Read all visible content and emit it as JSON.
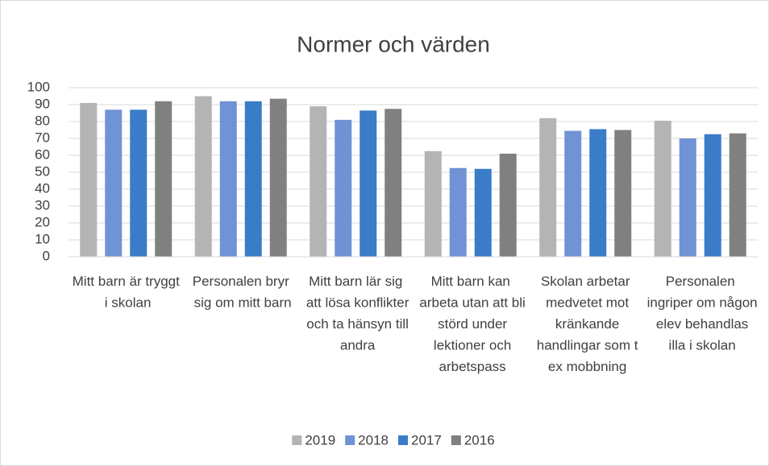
{
  "chart_data": {
    "type": "bar",
    "title": "Normer och värden",
    "categories": [
      "Mitt barn är tryggt i skolan",
      "Personalen bryr sig om mitt barn",
      "Mitt barn lär sig att lösa konflikter och ta hänsyn till andra",
      "Mitt barn kan arbeta utan att bli störd under lektioner och arbetspass",
      "Skolan arbetar medvetet mot kränkande handlingar som t ex mobbning",
      "Personalen ingriper om någon elev behandlas illa i skolan"
    ],
    "series": [
      {
        "name": "2019",
        "color": "#b4b4b4",
        "values": [
          91,
          95,
          89,
          62.5,
          82,
          80.5
        ]
      },
      {
        "name": "2018",
        "color": "#6f93d4",
        "values": [
          87,
          92,
          81,
          52.5,
          74.5,
          70
        ]
      },
      {
        "name": "2017",
        "color": "#3a7cc8",
        "values": [
          87,
          92,
          86.5,
          52,
          75.5,
          72.5
        ]
      },
      {
        "name": "2016",
        "color": "#808080",
        "values": [
          92,
          93.5,
          87.5,
          61,
          75,
          73
        ]
      }
    ],
    "ylim": [
      0,
      100
    ],
    "yticks": [
      0,
      10,
      20,
      30,
      40,
      50,
      60,
      70,
      80,
      90,
      100
    ],
    "grid": true,
    "legend": "bottom"
  }
}
